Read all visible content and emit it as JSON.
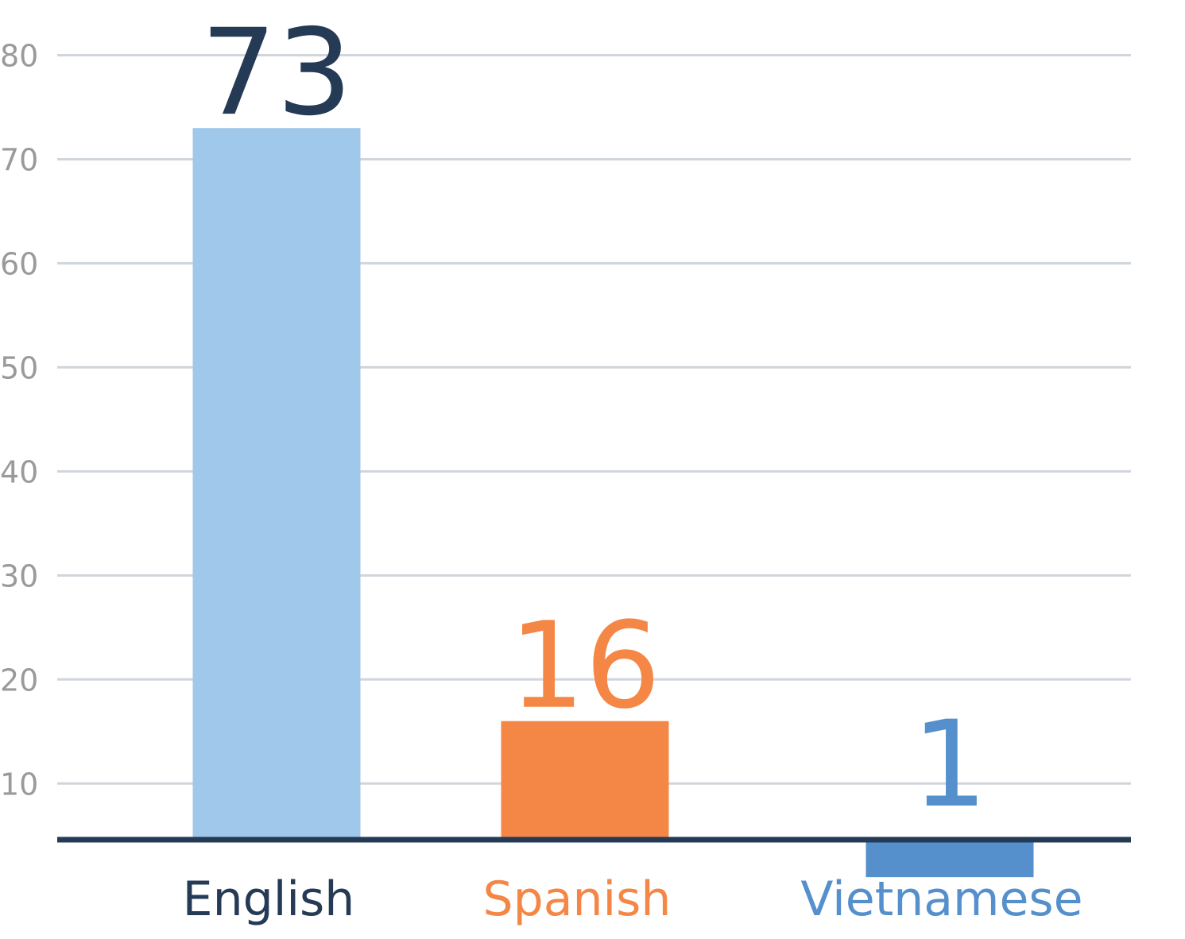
{
  "chart_data": {
    "type": "bar",
    "categories": [
      "English",
      "Spanish",
      "Vietnamese"
    ],
    "values": [
      73,
      16,
      1
    ],
    "colors": [
      "#a0c8ea",
      "#f58746",
      "#5590cc"
    ],
    "label_colors": [
      "#253a55",
      "#f58746",
      "#5590cc"
    ],
    "ylim": [
      4.6,
      85
    ],
    "yticks": [
      10,
      20,
      30,
      40,
      50,
      60,
      70,
      80
    ],
    "grid": true
  }
}
